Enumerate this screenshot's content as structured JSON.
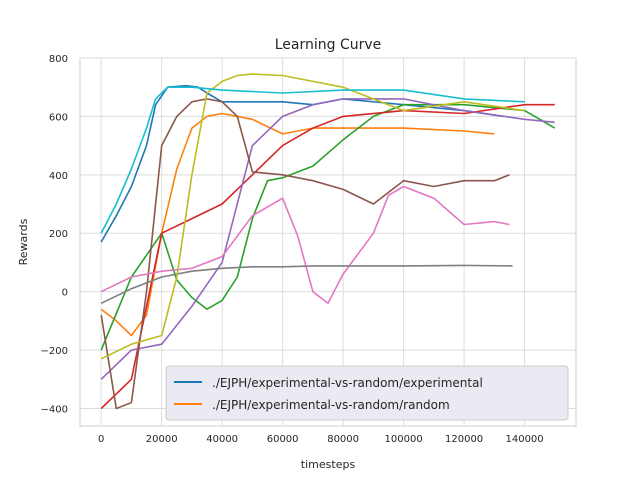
{
  "chart_data": {
    "type": "line",
    "title": "Learning Curve",
    "xlabel": "timesteps",
    "ylabel": "Rewards",
    "xlim": [
      -7000,
      157000
    ],
    "ylim": [
      -460,
      800
    ],
    "xticks": [
      0,
      20000,
      40000,
      60000,
      80000,
      100000,
      120000,
      140000
    ],
    "xtick_labels": [
      "0",
      "20000",
      "40000",
      "60000",
      "80000",
      "100000",
      "120000",
      "140000"
    ],
    "yticks": [
      -400,
      -200,
      0,
      200,
      400,
      600,
      800
    ],
    "ytick_labels": [
      "−400",
      "−200",
      "0",
      "200",
      "400",
      "600",
      "800"
    ],
    "grid": true,
    "legend_position": "lower-right",
    "series": [
      {
        "name": "./EJPH/experimental-vs-random/experimental",
        "color": "#1f77b4",
        "x": [
          0,
          5000,
          10000,
          15000,
          18000,
          22000,
          28000,
          32000,
          35000,
          40000,
          50000,
          60000,
          70000,
          80000,
          100000,
          120000,
          133000
        ],
        "y": [
          170,
          260,
          360,
          500,
          640,
          700,
          705,
          700,
          680,
          650,
          650,
          650,
          640,
          660,
          640,
          620,
          600
        ]
      },
      {
        "name": "./EJPH/experimental-vs-random/random",
        "color": "#ff7f0e",
        "x": [
          0,
          5000,
          10000,
          15000,
          20000,
          25000,
          30000,
          35000,
          40000,
          50000,
          60000,
          70000,
          80000,
          100000,
          120000,
          130000
        ],
        "y": [
          -60,
          -100,
          -150,
          -80,
          200,
          420,
          560,
          600,
          610,
          590,
          540,
          560,
          560,
          560,
          550,
          540
        ]
      },
      {
        "color": "#2ca02c",
        "x": [
          0,
          10000,
          20000,
          25000,
          30000,
          35000,
          40000,
          45000,
          50000,
          55000,
          60000,
          70000,
          80000,
          90000,
          100000,
          120000,
          140000,
          150000
        ],
        "y": [
          -200,
          50,
          200,
          40,
          -20,
          -60,
          -30,
          50,
          250,
          380,
          390,
          430,
          520,
          600,
          640,
          640,
          620,
          560
        ]
      },
      {
        "color": "#d62728",
        "x": [
          0,
          10000,
          20000,
          30000,
          40000,
          50000,
          60000,
          70000,
          80000,
          100000,
          120000,
          140000,
          150000
        ],
        "y": [
          -400,
          -300,
          200,
          250,
          300,
          400,
          500,
          560,
          600,
          620,
          610,
          640,
          640
        ]
      },
      {
        "color": "#9467bd",
        "x": [
          0,
          10000,
          20000,
          30000,
          40000,
          50000,
          60000,
          70000,
          80000,
          100000,
          120000,
          140000,
          150000
        ],
        "y": [
          -300,
          -200,
          -180,
          -50,
          100,
          500,
          600,
          640,
          660,
          660,
          620,
          590,
          580
        ]
      },
      {
        "color": "#8c564b",
        "x": [
          0,
          5000,
          10000,
          15000,
          20000,
          25000,
          30000,
          35000,
          40000,
          45000,
          50000,
          60000,
          70000,
          80000,
          90000,
          100000,
          110000,
          120000,
          130000,
          135000
        ],
        "y": [
          -80,
          -400,
          -380,
          0,
          500,
          600,
          650,
          660,
          650,
          600,
          410,
          400,
          380,
          350,
          300,
          380,
          360,
          380,
          380,
          400
        ]
      },
      {
        "color": "#e377c2",
        "x": [
          0,
          10000,
          20000,
          30000,
          40000,
          50000,
          60000,
          65000,
          70000,
          75000,
          80000,
          90000,
          95000,
          100000,
          110000,
          120000,
          130000,
          135000
        ],
        "y": [
          0,
          50,
          70,
          80,
          120,
          260,
          320,
          190,
          0,
          -40,
          60,
          200,
          330,
          360,
          320,
          230,
          240,
          230
        ]
      },
      {
        "color": "#7f7f7f",
        "x": [
          0,
          10000,
          20000,
          30000,
          40000,
          50000,
          60000,
          70000,
          80000,
          100000,
          120000,
          136000
        ],
        "y": [
          -40,
          10,
          50,
          70,
          80,
          85,
          85,
          88,
          88,
          88,
          90,
          88
        ]
      },
      {
        "color": "#bcbd22",
        "x": [
          0,
          10000,
          20000,
          25000,
          30000,
          35000,
          40000,
          45000,
          50000,
          60000,
          70000,
          80000,
          100000,
          120000,
          140000
        ],
        "y": [
          -230,
          -180,
          -150,
          50,
          400,
          680,
          720,
          740,
          745,
          740,
          720,
          700,
          620,
          650,
          620
        ]
      },
      {
        "color": "#17becf",
        "x": [
          0,
          5000,
          10000,
          15000,
          18000,
          22000,
          30000,
          40000,
          60000,
          80000,
          100000,
          120000,
          140000
        ],
        "y": [
          200,
          300,
          420,
          560,
          660,
          700,
          700,
          690,
          680,
          690,
          690,
          660,
          650
        ]
      }
    ]
  }
}
